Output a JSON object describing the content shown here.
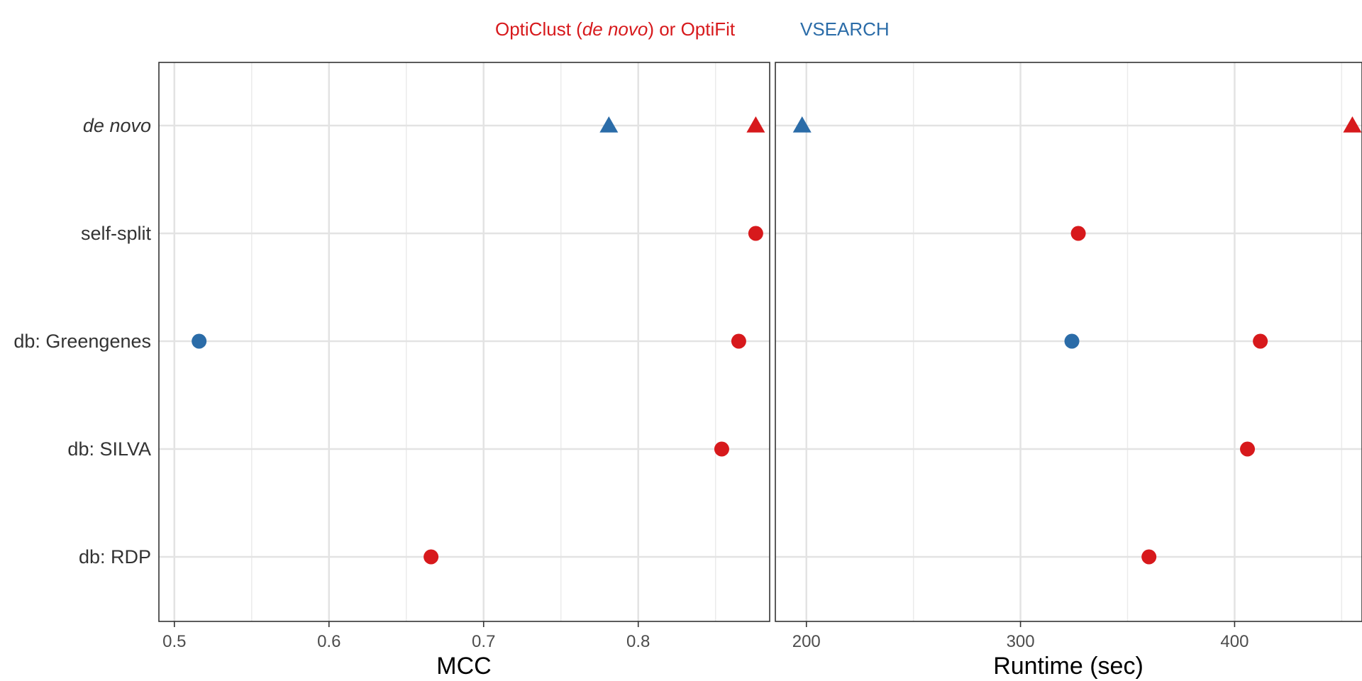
{
  "chart_data": {
    "type": "scatter",
    "legend": {
      "placement": "top",
      "entries": [
        {
          "parts": [
            {
              "text": "OptiClust (",
              "italic": false
            },
            {
              "text": "de novo",
              "italic": true
            },
            {
              "text": ") or OptiFit",
              "italic": false
            }
          ],
          "color": "#d7191c"
        },
        {
          "parts": [
            {
              "text": "VSEARCH",
              "italic": false
            }
          ],
          "color": "#2b6ca8"
        }
      ]
    },
    "categories": [
      {
        "label": "de novo",
        "italic": true
      },
      {
        "label": "self-split",
        "italic": false
      },
      {
        "label": "db: Greengenes",
        "italic": false
      },
      {
        "label": "db: SILVA",
        "italic": false
      },
      {
        "label": "db: RDP",
        "italic": false
      }
    ],
    "grid": true,
    "panels": [
      {
        "xlabel": "MCC",
        "xlim": [
          0.49,
          0.885
        ],
        "ticks": [
          0.5,
          0.6,
          0.7,
          0.8
        ],
        "tick_labels": [
          "0.5",
          "0.6",
          "0.7",
          "0.8"
        ],
        "minor_ticks": [
          0.55,
          0.65,
          0.75,
          0.85
        ],
        "points": [
          {
            "category": "de novo",
            "value": 0.781,
            "series": "VSEARCH",
            "shape": "triangle"
          },
          {
            "category": "de novo",
            "value": 0.876,
            "series": "OptiClust (de novo) or OptiFit",
            "shape": "triangle"
          },
          {
            "category": "self-split",
            "value": 0.876,
            "series": "OptiClust (de novo) or OptiFit",
            "shape": "circle"
          },
          {
            "category": "db: Greengenes",
            "value": 0.516,
            "series": "VSEARCH",
            "shape": "circle"
          },
          {
            "category": "db: Greengenes",
            "value": 0.865,
            "series": "OptiClust (de novo) or OptiFit",
            "shape": "circle"
          },
          {
            "category": "db: SILVA",
            "value": 0.854,
            "series": "OptiClust (de novo) or OptiFit",
            "shape": "circle"
          },
          {
            "category": "db: RDP",
            "value": 0.666,
            "series": "OptiClust (de novo) or OptiFit",
            "shape": "circle"
          }
        ]
      },
      {
        "xlabel": "Runtime (sec)",
        "xlim": [
          185.5,
          459.5
        ],
        "ticks": [
          200,
          300,
          400
        ],
        "tick_labels": [
          "200",
          "300",
          "400"
        ],
        "minor_ticks": [
          250,
          350,
          450
        ],
        "points": [
          {
            "category": "de novo",
            "value": 198,
            "series": "VSEARCH",
            "shape": "triangle"
          },
          {
            "category": "de novo",
            "value": 455,
            "series": "OptiClust (de novo) or OptiFit",
            "shape": "triangle"
          },
          {
            "category": "self-split",
            "value": 327,
            "series": "OptiClust (de novo) or OptiFit",
            "shape": "circle"
          },
          {
            "category": "db: Greengenes",
            "value": 324,
            "series": "VSEARCH",
            "shape": "circle"
          },
          {
            "category": "db: Greengenes",
            "value": 412,
            "series": "OptiClust (de novo) or OptiFit",
            "shape": "circle"
          },
          {
            "category": "db: SILVA",
            "value": 406,
            "series": "OptiClust (de novo) or OptiFit",
            "shape": "circle"
          },
          {
            "category": "db: RDP",
            "value": 360,
            "series": "OptiClust (de novo) or OptiFit",
            "shape": "circle"
          }
        ]
      }
    ]
  }
}
